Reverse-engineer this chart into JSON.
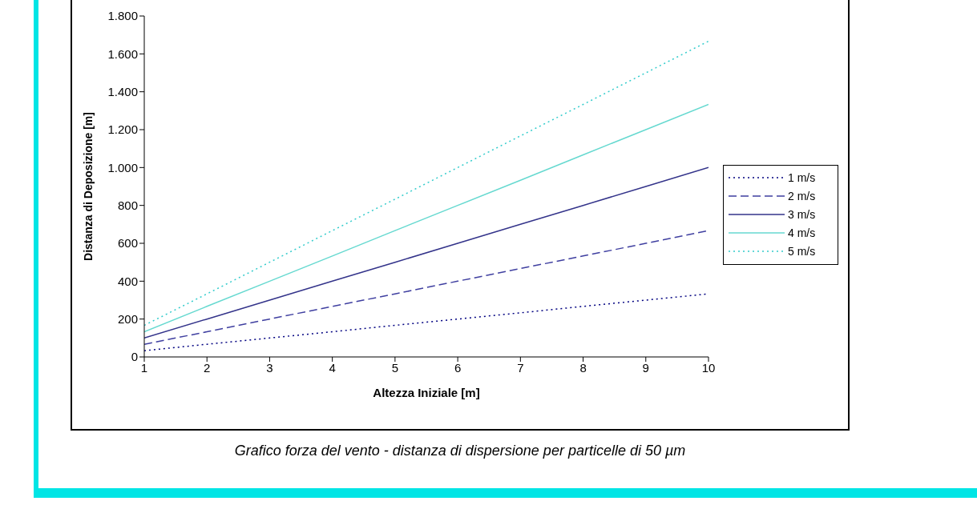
{
  "chart_data": {
    "type": "line",
    "xlabel": "Altezza Iniziale [m]",
    "ylabel": "Distanza di Deposizione [m]",
    "x": [
      1,
      2,
      3,
      4,
      5,
      6,
      7,
      8,
      9,
      10
    ],
    "series": [
      {
        "name": "1 m/s",
        "color": "#000080",
        "line_style": "dotted",
        "values": [
          33,
          67,
          100,
          133,
          167,
          200,
          233,
          267,
          300,
          333
        ]
      },
      {
        "name": "2 m/s",
        "color": "#3f3fa0",
        "line_style": "dashed",
        "values": [
          67,
          133,
          200,
          267,
          333,
          400,
          467,
          533,
          600,
          667
        ]
      },
      {
        "name": "3 m/s",
        "color": "#33338a",
        "line_style": "solid",
        "values": [
          100,
          200,
          300,
          400,
          500,
          600,
          700,
          800,
          900,
          1000
        ]
      },
      {
        "name": "4 m/s",
        "color": "#66d9d0",
        "line_style": "solid",
        "values": [
          133,
          267,
          400,
          533,
          667,
          800,
          933,
          1067,
          1200,
          1333
        ]
      },
      {
        "name": "5 m/s",
        "color": "#33cccc",
        "line_style": "dotted",
        "values": [
          167,
          333,
          500,
          667,
          833,
          1000,
          1167,
          1333,
          1500,
          1667
        ]
      }
    ],
    "xlim": [
      1,
      10
    ],
    "xticks": [
      1,
      2,
      3,
      4,
      5,
      6,
      7,
      8,
      9,
      10
    ],
    "ylim": [
      0,
      1800
    ],
    "yticks": [
      0,
      {
        "value": 200,
        "label": "200"
      },
      400,
      600,
      800,
      {
        "value": 1000,
        "label": "1.000"
      },
      {
        "value": 1200,
        "label": "1.200"
      },
      {
        "value": 1400,
        "label": "1.400"
      },
      {
        "value": 1600,
        "label": "1.600"
      },
      {
        "value": 1800,
        "label": "1.800"
      }
    ],
    "grid": false,
    "marker": "none",
    "legend": "right",
    "annotations": [
      "Grafico forza del vento - distanza di dispersione per particelle di 50 µm"
    ]
  }
}
